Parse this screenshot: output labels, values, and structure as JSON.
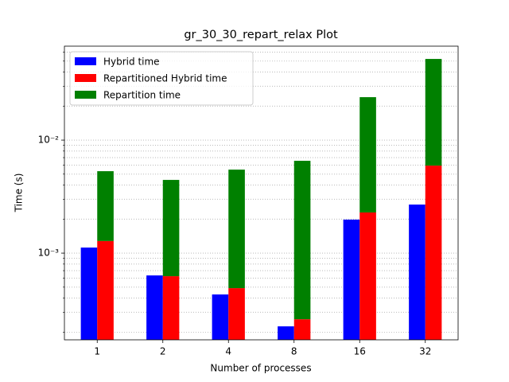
{
  "chart_data": {
    "type": "bar",
    "title": "gr_30_30_repart_relax Plot",
    "x_label": "Number of processes",
    "y_label": "Time (s)",
    "categories": [
      "1",
      "2",
      "4",
      "8",
      "16",
      "32"
    ],
    "series": [
      {
        "name": "Hybrid time",
        "color": "#0000ff",
        "values": [
          0.00112,
          0.000635,
          0.000431,
          0.000225,
          0.00198,
          0.00269
        ]
      },
      {
        "name": "Repartitioned Hybrid time",
        "color": "#ff0000",
        "values": [
          0.00128,
          0.000625,
          0.00049,
          0.00026,
          0.00229,
          0.00595
        ]
      },
      {
        "name": "Repartition time",
        "color": "#008000",
        "stacked_on": "Repartitioned Hybrid time",
        "values": [
          0.00403,
          0.00382,
          0.00499,
          0.0063,
          0.0217,
          0.0463
        ]
      }
    ],
    "log_scale_y": true,
    "ylim": [
      0.000171,
      0.0678
    ],
    "yticks": [
      {
        "value": 0.001,
        "label": "10⁻³"
      },
      {
        "value": 0.01,
        "label": "10⁻²"
      }
    ],
    "minor_yticks": [
      0.0002,
      0.0003,
      0.0004,
      0.0005,
      0.0006,
      0.0007,
      0.0008,
      0.0009,
      0.002,
      0.003,
      0.004,
      0.005,
      0.006,
      0.007,
      0.008,
      0.009,
      0.02,
      0.03,
      0.04,
      0.05,
      0.06
    ],
    "grid": true,
    "legend": "upper-left"
  }
}
